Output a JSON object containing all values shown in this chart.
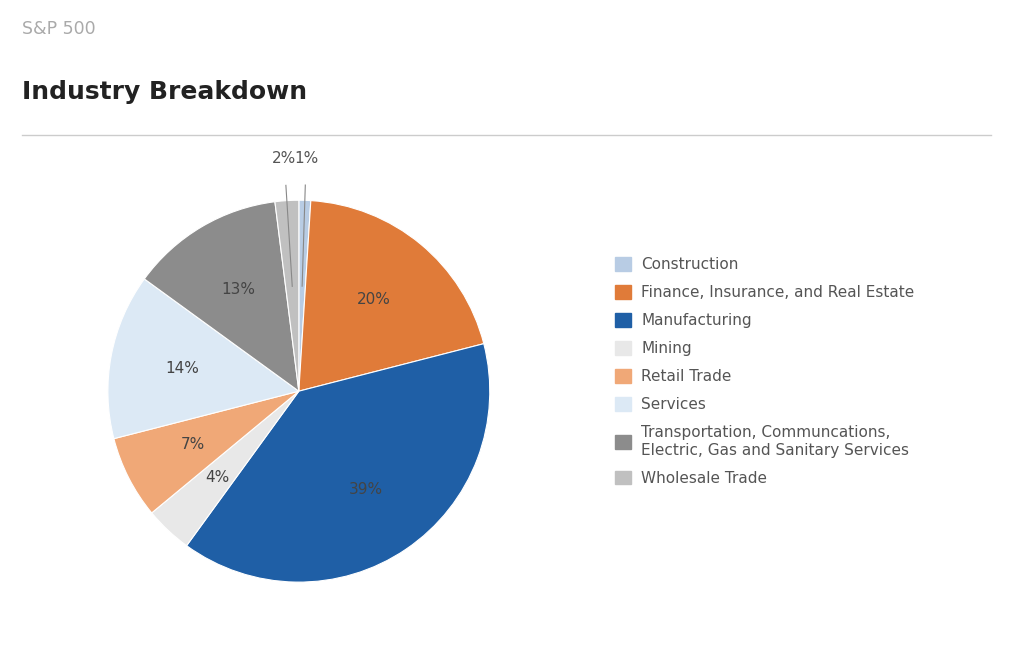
{
  "title_top": "S&P 500",
  "title_main": "Industry Breakdown",
  "labels": [
    "Construction",
    "Finance, Insurance, and Real Estate",
    "Manufacturing",
    "Mining",
    "Retail Trade",
    "Services",
    "Transportation, Communcations,\nElectric, Gas and Sanitary Services",
    "Wholesale Trade"
  ],
  "values": [
    1,
    20,
    39,
    4,
    7,
    14,
    13,
    2
  ],
  "colors": [
    "#b8cce4",
    "#e07b39",
    "#1f5fa6",
    "#e8e8e8",
    "#f0a877",
    "#dce9f5",
    "#8c8c8c",
    "#c0c0c0"
  ],
  "legend_labels": [
    "Construction",
    "Finance, Insurance, and Real Estate",
    "Manufacturing",
    "Mining",
    "Retail Trade",
    "Services",
    "Transportation, Communcations,\nElectric, Gas and Sanitary Services",
    "Wholesale Trade"
  ],
  "autopct_fontsize": 11,
  "legend_fontsize": 11,
  "title_top_color": "#aaaaaa",
  "title_main_color": "#222222",
  "background_color": "#ffffff",
  "startangle": 90,
  "line_color": "#cccccc"
}
